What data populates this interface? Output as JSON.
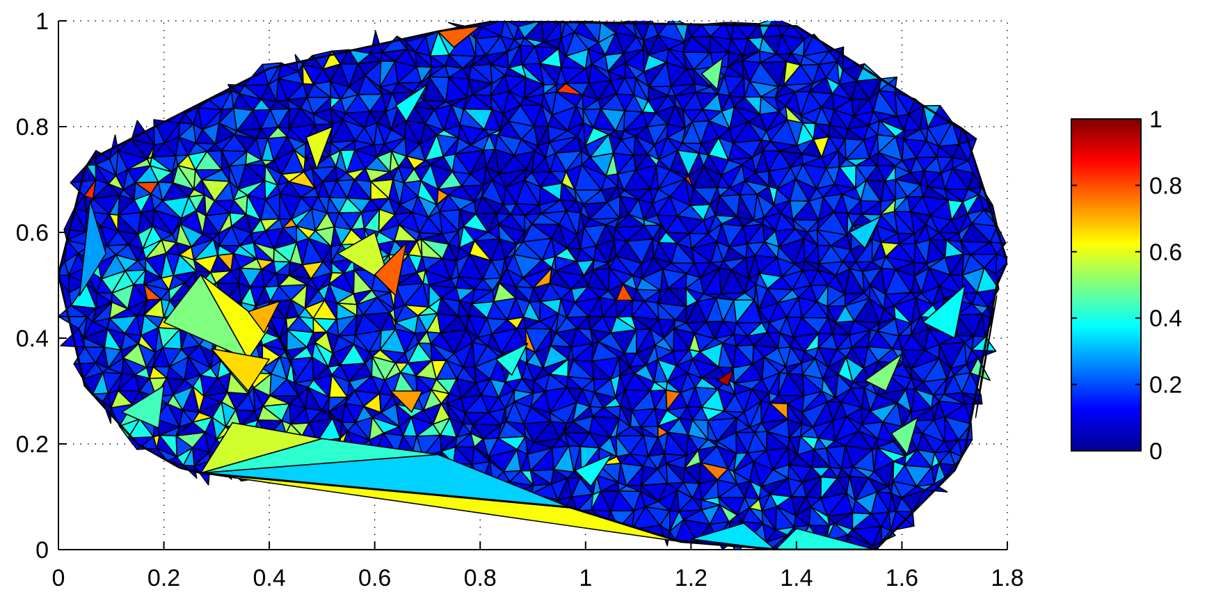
{
  "chart_data": {
    "type": "heatmap",
    "subtype": "triangulated-mesh",
    "title": "",
    "xlabel": "",
    "ylabel": "",
    "xlim": [
      0,
      1.8
    ],
    "ylim": [
      0,
      1
    ],
    "x_ticks": [
      "0",
      "0.2",
      "0.4",
      "0.6",
      "0.8",
      "1",
      "1.2",
      "1.4",
      "1.6",
      "1.8"
    ],
    "y_ticks": [
      "0",
      "0.2",
      "0.4",
      "0.6",
      "0.8",
      "1"
    ],
    "grid": true,
    "colormap": "jet",
    "colorbar": {
      "range": [
        0,
        1
      ],
      "ticks": [
        "0",
        "0.2",
        "0.4",
        "0.6",
        "0.8",
        "1"
      ],
      "placement": "right"
    },
    "boundary": [
      [
        0.0,
        0.52
      ],
      [
        0.05,
        0.72
      ],
      [
        0.065,
        0.74
      ],
      [
        0.4,
        0.91
      ],
      [
        0.72,
        0.98
      ],
      [
        0.83,
        1.0
      ],
      [
        1.4,
        0.99
      ],
      [
        1.72,
        0.79
      ],
      [
        1.8,
        0.545
      ],
      [
        1.78,
        0.5
      ],
      [
        1.72,
        0.19
      ],
      [
        1.7,
        0.15
      ],
      [
        1.55,
        0.0
      ],
      [
        1.37,
        0.0
      ],
      [
        1.18,
        0.015
      ],
      [
        0.97,
        0.08
      ],
      [
        0.27,
        0.145
      ],
      [
        0.23,
        0.155
      ],
      [
        0.15,
        0.2
      ],
      [
        0.05,
        0.31
      ]
    ],
    "highlighted_triangles": [
      [
        [
          0.27,
          0.145
        ],
        [
          0.97,
          0.08
        ],
        [
          1.18,
          0.015
        ],
        0.62
      ],
      [
        [
          0.27,
          0.145
        ],
        [
          0.72,
          0.18
        ],
        [
          0.97,
          0.08
        ],
        0.33
      ],
      [
        [
          0.27,
          0.145
        ],
        [
          0.5,
          0.21
        ],
        [
          0.72,
          0.18
        ],
        0.42
      ],
      [
        [
          0.27,
          0.145
        ],
        [
          0.33,
          0.24
        ],
        [
          0.5,
          0.21
        ],
        0.58
      ],
      [
        [
          0.2,
          0.43
        ],
        [
          0.27,
          0.52
        ],
        [
          0.36,
          0.36
        ],
        0.5
      ],
      [
        [
          0.27,
          0.52
        ],
        [
          0.4,
          0.42
        ],
        [
          0.36,
          0.36
        ],
        0.62
      ],
      [
        [
          0.29,
          0.38
        ],
        [
          0.36,
          0.3
        ],
        [
          0.4,
          0.36
        ],
        0.66
      ],
      [
        [
          0.4,
          0.44
        ],
        [
          0.43,
          0.38
        ],
        [
          0.45,
          0.33
        ],
        0.85
      ],
      [
        [
          0.53,
          0.56
        ],
        [
          0.6,
          0.6
        ],
        [
          0.63,
          0.5
        ],
        0.58
      ],
      [
        [
          0.6,
          0.52
        ],
        [
          0.66,
          0.58
        ],
        [
          0.64,
          0.48
        ],
        0.78
      ],
      [
        [
          0.63,
          0.3
        ],
        [
          0.67,
          0.26
        ],
        [
          0.69,
          0.3
        ],
        0.72
      ],
      [
        [
          0.72,
          0.98
        ],
        [
          0.8,
          0.99
        ],
        [
          0.75,
          0.95
        ],
        0.78
      ],
      [
        [
          0.36,
          0.45
        ],
        [
          0.42,
          0.47
        ],
        [
          0.39,
          0.41
        ],
        0.7
      ],
      [
        [
          1.36,
          0.0
        ],
        [
          1.55,
          0.0
        ],
        [
          1.4,
          0.04
        ],
        0.4
      ],
      [
        [
          1.2,
          0.02
        ],
        [
          1.36,
          0.0
        ],
        [
          1.3,
          0.05
        ],
        0.35
      ],
      [
        [
          1.53,
          0.32
        ],
        [
          1.6,
          0.37
        ],
        [
          1.57,
          0.3
        ],
        0.5
      ],
      [
        [
          1.58,
          0.22
        ],
        [
          1.63,
          0.25
        ],
        [
          1.61,
          0.18
        ],
        0.48
      ],
      [
        [
          1.64,
          0.43
        ],
        [
          1.72,
          0.5
        ],
        [
          1.7,
          0.4
        ],
        0.38
      ],
      [
        [
          0.12,
          0.26
        ],
        [
          0.2,
          0.31
        ],
        [
          0.19,
          0.23
        ],
        0.44
      ],
      [
        [
          1.22,
          0.9
        ],
        [
          1.26,
          0.93
        ],
        [
          1.25,
          0.87
        ],
        0.48
      ],
      [
        [
          0.64,
          0.84
        ],
        [
          0.7,
          0.88
        ],
        [
          0.66,
          0.81
        ],
        0.38
      ],
      [
        [
          0.47,
          0.78
        ],
        [
          0.52,
          0.8
        ],
        [
          0.49,
          0.72
        ],
        0.6
      ],
      [
        [
          1.25,
          0.32
        ],
        [
          1.28,
          0.34
        ],
        [
          1.27,
          0.31
        ],
        0.95
      ],
      [
        [
          0.04,
          0.48
        ],
        [
          0.06,
          0.66
        ],
        [
          0.09,
          0.56
        ],
        0.28
      ],
      [
        [
          1.74,
          0.25
        ],
        [
          1.78,
          0.48
        ],
        [
          1.75,
          0.32
        ],
        0.35
      ],
      [
        [
          0.83,
          0.36
        ],
        [
          0.89,
          0.39
        ],
        [
          0.86,
          0.33
        ],
        0.4
      ],
      [
        [
          0.98,
          0.15
        ],
        [
          1.05,
          0.18
        ],
        [
          1.01,
          0.12
        ],
        0.38
      ],
      [
        [
          1.5,
          0.6
        ],
        [
          1.56,
          0.63
        ],
        [
          1.53,
          0.57
        ],
        0.33
      ]
    ]
  }
}
